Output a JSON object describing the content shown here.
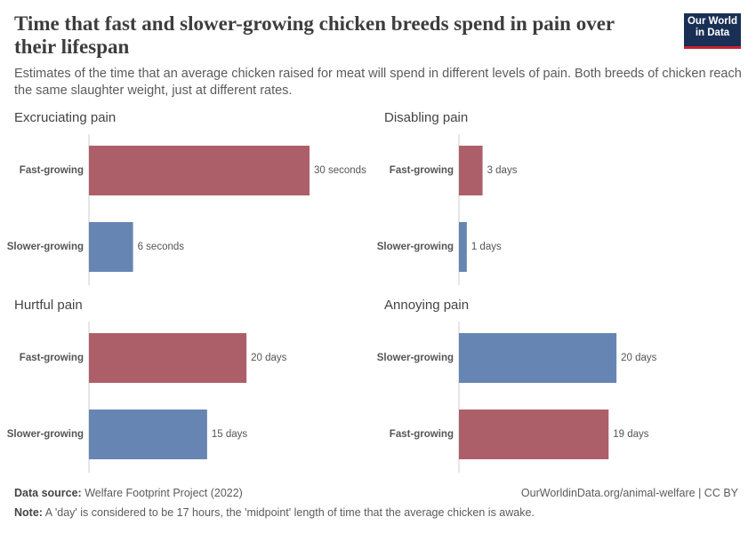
{
  "title": "Time that fast and slower-growing chicken breeds spend in pain over their lifespan",
  "subtitle": "Estimates of the time that an average chicken raised for meat will spend in different levels of pain. Both breeds of chicken reach the same slaughter weight, just at different rates.",
  "logo": {
    "line1": "Our World",
    "line2": "in Data"
  },
  "source_label": "Data source:",
  "source": "Welfare Footprint Project (2022)",
  "url": "OurWorldinData.org/animal-welfare | CC BY",
  "note_label": "Note:",
  "note": "A 'day' is considered to be 17 hours, the 'midpoint' length of time that the average chicken is awake.",
  "chart_data": [
    {
      "type": "bar",
      "title": "Excruciating pain",
      "categories": [
        "Fast-growing",
        "Slower-growing"
      ],
      "values": [
        30,
        6
      ],
      "value_labels": [
        "30 seconds",
        "6 seconds"
      ],
      "colors": [
        "#ad5f69",
        "#6685b2"
      ],
      "xlim": [
        0,
        30
      ]
    },
    {
      "type": "bar",
      "title": "Disabling pain",
      "categories": [
        "Fast-growing",
        "Slower-growing"
      ],
      "values": [
        3,
        1
      ],
      "value_labels": [
        "3 days",
        "1 days"
      ],
      "colors": [
        "#ad5f69",
        "#6685b2"
      ],
      "xlim": [
        0,
        28
      ]
    },
    {
      "type": "bar",
      "title": "Hurtful pain",
      "categories": [
        "Fast-growing",
        "Slower-growing"
      ],
      "values": [
        20,
        15
      ],
      "value_labels": [
        "20 days",
        "15 days"
      ],
      "colors": [
        "#ad5f69",
        "#6685b2"
      ],
      "xlim": [
        0,
        28
      ]
    },
    {
      "type": "bar",
      "title": "Annoying pain",
      "categories": [
        "Slower-growing",
        "Fast-growing"
      ],
      "values": [
        20,
        19
      ],
      "value_labels": [
        "20 days",
        "19 days"
      ],
      "colors": [
        "#6685b2",
        "#ad5f69"
      ],
      "xlim": [
        0,
        28
      ]
    }
  ]
}
